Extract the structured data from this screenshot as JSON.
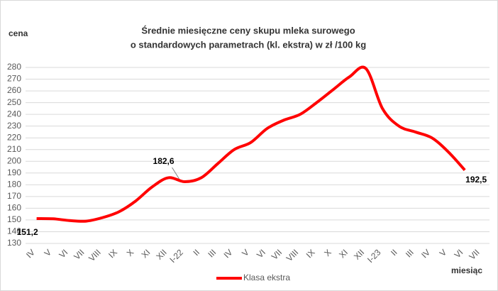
{
  "chart_data": {
    "type": "line",
    "title": "Średnie miesięczne ceny skupu mleka surowego",
    "subtitle": "o standardowych parametrach (kl. ekstra) w zł /100 kg",
    "y_label": "cena",
    "x_label": "miesiąc",
    "categories": [
      "IV",
      "V",
      "VI",
      "VII",
      "VIII",
      "IX",
      "X",
      "XI",
      "XII",
      "I-22",
      "II",
      "III",
      "IV",
      "V",
      "VI",
      "VII",
      "VIII",
      "IX",
      "X",
      "XI",
      "XII",
      "I-23",
      "II",
      "III",
      "IV",
      "V",
      "VI",
      "VII"
    ],
    "series": [
      {
        "name": "Klasa ekstra",
        "color": "#ff0000",
        "values": [
          151.2,
          151,
          149.5,
          149,
          152,
          157,
          166,
          178,
          186,
          182.6,
          186,
          198,
          210,
          216,
          228,
          235,
          240,
          250,
          261,
          272,
          279,
          245,
          230,
          225,
          220,
          208,
          192.5,
          null
        ],
        "value_labels": [
          "151,2",
          null,
          null,
          null,
          null,
          null,
          null,
          null,
          null,
          "182,6",
          null,
          null,
          null,
          null,
          null,
          null,
          null,
          null,
          null,
          null,
          null,
          null,
          null,
          null,
          null,
          null,
          "192,5",
          null
        ]
      }
    ],
    "ylim": [
      130,
      280
    ],
    "yticks": [
      130,
      140,
      150,
      160,
      170,
      180,
      190,
      200,
      210,
      220,
      230,
      240,
      250,
      260,
      270,
      280
    ],
    "grid": true,
    "legend": "bottom"
  }
}
